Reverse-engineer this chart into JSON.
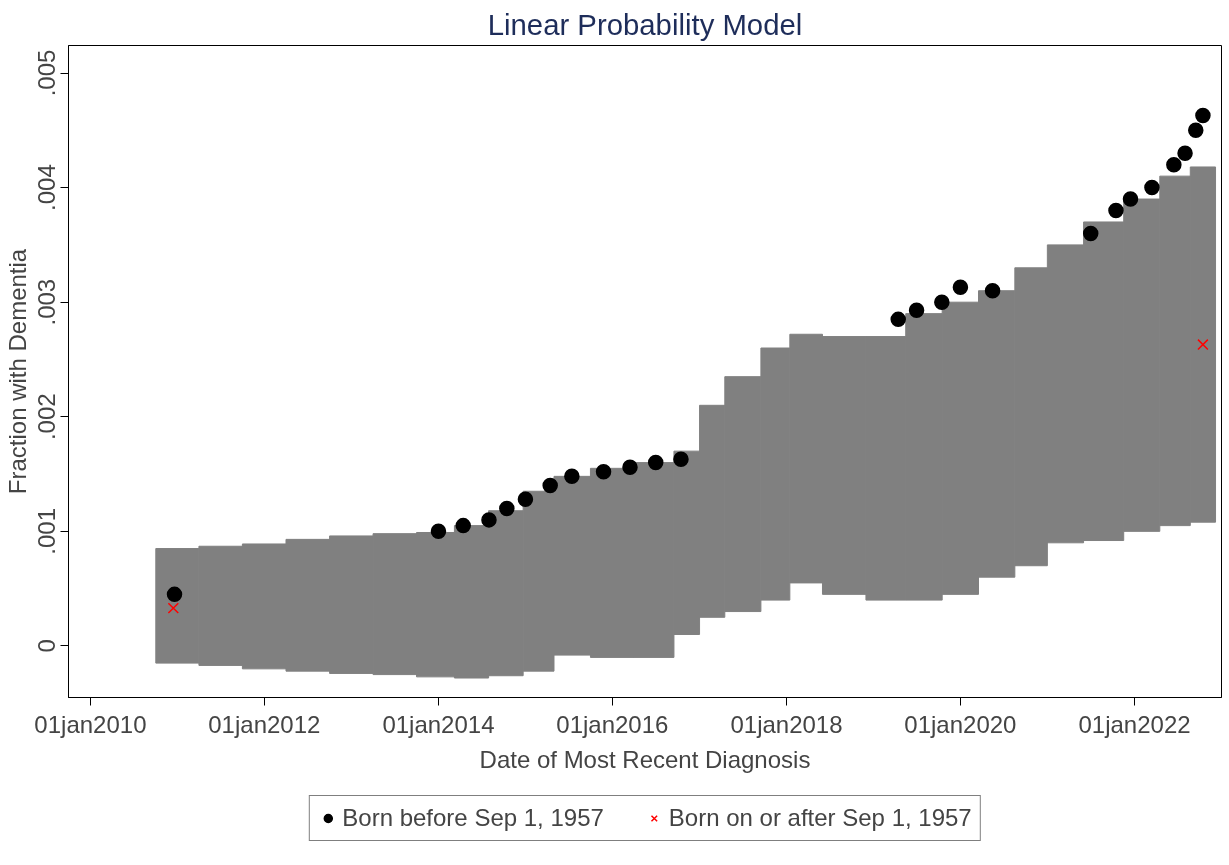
{
  "chart_data": {
    "type": "scatter",
    "title": "Linear Probability Model",
    "xlabel": "Date of Most Recent Diagnosis",
    "ylabel": "Fraction with Dementia",
    "xlim": [
      "2009-10-01",
      "2023-01-01"
    ],
    "xticks": [
      {
        "value": "2010-01-01",
        "label": "01jan2010"
      },
      {
        "value": "2012-01-01",
        "label": "01jan2012"
      },
      {
        "value": "2014-01-01",
        "label": "01jan2014"
      },
      {
        "value": "2016-01-01",
        "label": "01jan2016"
      },
      {
        "value": "2018-01-01",
        "label": "01jan2018"
      },
      {
        "value": "2020-01-01",
        "label": "01jan2020"
      },
      {
        "value": "2022-01-01",
        "label": "01jan2022"
      }
    ],
    "ylim": [
      -0.00045,
      0.00524
    ],
    "yticks": [
      0,
      {
        "value": 0.001,
        "label": ".001"
      },
      {
        "value": 0.002,
        "label": ".002"
      },
      {
        "value": 0.003,
        "label": ".003"
      },
      {
        "value": 0.004,
        "label": ".004"
      },
      {
        "value": 0.005,
        "label": ".005"
      }
    ],
    "grid": false,
    "legend": "bottom",
    "series": [
      {
        "name": "Born before Sep 1, 1957",
        "marker": "circle",
        "color": "#000000",
        "x": [
          "2010-12-20",
          "2014-01-01",
          "2014-04-15",
          "2014-08-01",
          "2014-10-15",
          "2015-01-01",
          "2015-04-15",
          "2015-07-15",
          "2015-11-25",
          "2016-03-15",
          "2016-07-01",
          "2016-10-15",
          "2019-04-15",
          "2019-07-01",
          "2019-10-15",
          "2020-01-01",
          "2020-05-15",
          "2021-07-01",
          "2021-10-15",
          "2021-12-15",
          "2022-03-15",
          "2022-06-15",
          "2022-08-01",
          "2022-09-15",
          "2022-10-15"
        ],
        "values": [
          0.00045,
          0.001,
          0.00105,
          0.0011,
          0.0012,
          0.00128,
          0.0014,
          0.00148,
          0.00152,
          0.00156,
          0.0016,
          0.00163,
          0.00285,
          0.00293,
          0.003,
          0.00313,
          0.0031,
          0.0036,
          0.0038,
          0.0039,
          0.004,
          0.0042,
          0.0043,
          0.0045,
          0.00463
        ]
      },
      {
        "name": "Born on or after Sep 1, 1957",
        "marker": "cross",
        "color": "#ff0000",
        "x": [
          "2010-12-15",
          "2022-10-15"
        ],
        "values": [
          0.00033,
          0.00263
        ]
      },
      {
        "type": "bar",
        "color": "#808080",
        "x": [
          "2011-01-01",
          "2011-07-01",
          "2012-01-01",
          "2012-07-01",
          "2013-01-01",
          "2013-07-01",
          "2014-01-01",
          "2014-05-15",
          "2014-10-15",
          "2015-03-01",
          "2015-07-01",
          "2016-01-01",
          "2016-07-01",
          "2016-12-01",
          "2017-02-01",
          "2017-07-01",
          "2017-12-01",
          "2018-03-01",
          "2018-09-01",
          "2019-03-01",
          "2019-08-01",
          "2020-01-01",
          "2020-06-01",
          "2020-11-01",
          "2021-03-01",
          "2021-09-01",
          "2022-02-01",
          "2022-07-01",
          "2022-10-15"
        ],
        "base": [
          -0.00015,
          -0.00017,
          -0.0002,
          -0.00022,
          -0.00024,
          -0.00025,
          -0.00027,
          -0.00028,
          -0.00026,
          -0.00022,
          -8e-05,
          -0.0001,
          -0.0001,
          0.0001,
          0.00025,
          0.0003,
          0.0004,
          0.00055,
          0.00045,
          0.0004,
          0.0004,
          0.00045,
          0.0006,
          0.0007,
          0.0009,
          0.00092,
          0.001,
          0.00105,
          0.00108
        ],
        "values": [
          0.001,
          0.00104,
          0.00109,
          0.00115,
          0.0012,
          0.00123,
          0.00126,
          0.00133,
          0.00144,
          0.00157,
          0.00156,
          0.00165,
          0.0017,
          0.0016,
          0.00185,
          0.00205,
          0.0022,
          0.00217,
          0.00225,
          0.0023,
          0.0025,
          0.00255,
          0.0025,
          0.0026,
          0.0026,
          0.00278,
          0.0029,
          0.00305,
          0.0031
        ]
      }
    ]
  }
}
